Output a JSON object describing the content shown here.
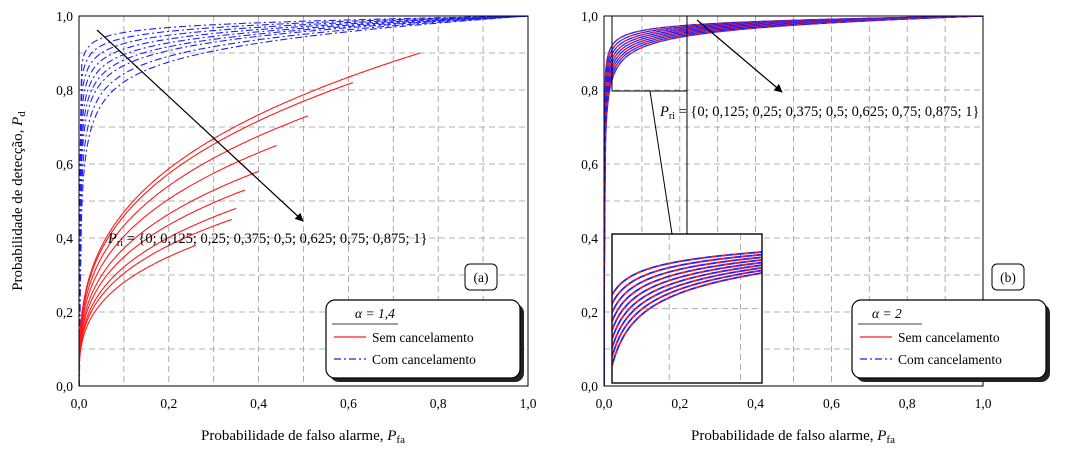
{
  "chart_data": [
    {
      "type": "line",
      "panel_tag": "(a)",
      "xlabel_main": "Probabilidade de falso alarme, ",
      "xlabel_sym": "P",
      "xlabel_sub": "fa",
      "ylabel_main": "Probabilidade de detecção, ",
      "ylabel_sym": "P",
      "ylabel_sub": "d",
      "xlim": [
        0,
        1
      ],
      "ylim": [
        0,
        1
      ],
      "xticks": [
        "0,0",
        "0,2",
        "0,4",
        "0,6",
        "0,8",
        "1,0"
      ],
      "yticks": [
        "0,0",
        "0,2",
        "0,4",
        "0,6",
        "0,8",
        "1,0"
      ],
      "grid": true,
      "annotation_sym": "P",
      "annotation_sub": "ri",
      "annotation_rest": " = {0; 0,125; 0,25; 0,375; 0,5; 0,625; 0,75; 0,875; 1}",
      "legend": {
        "title": "α = 1,4",
        "placement": "bottom-right",
        "entries": [
          "Sem cancelamento",
          "Com cancelamento"
        ]
      },
      "colors": {
        "sem": "#ff1a1a",
        "com": "#1f1fff"
      },
      "series_sem_endpoints": [
        {
          "pri": 0,
          "x_end": 0.76,
          "y_end": 0.9
        },
        {
          "pri": 0.125,
          "x_end": 0.61,
          "y_end": 0.82
        },
        {
          "pri": 0.25,
          "x_end": 0.51,
          "y_end": 0.73
        },
        {
          "pri": 0.375,
          "x_end": 0.44,
          "y_end": 0.65
        },
        {
          "pri": 0.5,
          "x_end": 0.4,
          "y_end": 0.58
        },
        {
          "pri": 0.625,
          "x_end": 0.37,
          "y_end": 0.53
        },
        {
          "pri": 0.75,
          "x_end": 0.35,
          "y_end": 0.48
        },
        {
          "pri": 0.875,
          "x_end": 0.34,
          "y_end": 0.45
        },
        {
          "pri": 1,
          "x_end": 0.26,
          "y_end": 0.38
        }
      ],
      "series_com_y_at_0_05": [
        0.94,
        0.92,
        0.9,
        0.88,
        0.86,
        0.84,
        0.82,
        0.79,
        0.76
      ]
    },
    {
      "type": "line",
      "panel_tag": "(b)",
      "xlabel_main": "Probabilidade de falso alarme, ",
      "xlabel_sym": "P",
      "xlabel_sub": "fa",
      "xlim": [
        0,
        1
      ],
      "ylim": [
        0,
        1
      ],
      "xticks": [
        "0,0",
        "0,2",
        "0,4",
        "0,6",
        "0,8",
        "1,0"
      ],
      "yticks": [
        "0,0",
        "0,2",
        "0,4",
        "0,6",
        "0,8",
        "1,0"
      ],
      "grid": true,
      "annotation_sym": "P",
      "annotation_sub": "ri",
      "annotation_rest": " = {0; 0,125; 0,25; 0,375; 0,5; 0,625; 0,75; 0,875; 1}",
      "zoom_region": {
        "x": [
          0.02,
          0.23
        ],
        "y": [
          0.8,
          1.0
        ]
      },
      "legend": {
        "title": "α = 2",
        "placement": "bottom-right",
        "entries": [
          "Sem cancelamento",
          "Com cancelamento"
        ]
      },
      "colors": {
        "sem": "#ff1a1a",
        "com": "#1f1fff"
      },
      "series_y_at_0_05": [
        0.945,
        0.937,
        0.929,
        0.921,
        0.913,
        0.905,
        0.897,
        0.889,
        0.881
      ]
    }
  ]
}
